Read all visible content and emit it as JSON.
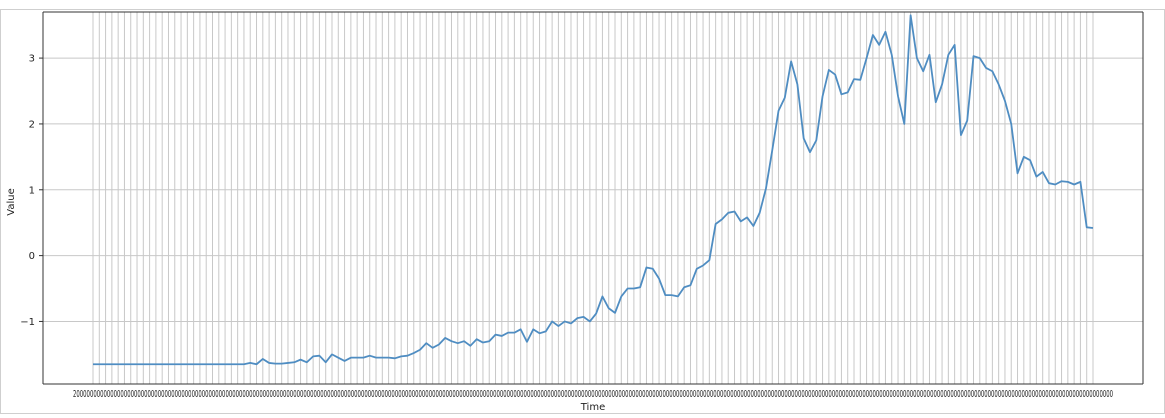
{
  "chart_data": {
    "type": "line",
    "xlabel": "Time",
    "ylabel": "Value",
    "ylim": [
      -1.95,
      3.7
    ],
    "yticks": [
      -1,
      0,
      1,
      2,
      3
    ],
    "ytick_labels": [
      "−1",
      "0",
      "1",
      "2",
      "3"
    ],
    "grid": true,
    "legend": "none",
    "x_tick_text": "2000000000000000000000000000000000000000000000000000000000000000000000000000000000000000000000000000000000000000000000000000000000000000000000000000000000000000000000000000000000000000000000000000000000000000000000000000000000000000000000000000000000000000000000000000000000000000000000000000000000000000000",
    "line_color": "#4f8dc2",
    "series": [
      {
        "values": [
          -1.65,
          -1.65,
          -1.65,
          -1.65,
          -1.65,
          -1.65,
          -1.65,
          -1.65,
          -1.65,
          -1.65,
          -1.65,
          -1.65,
          -1.65,
          -1.65,
          -1.65,
          -1.65,
          -1.65,
          -1.65,
          -1.65,
          -1.65,
          -1.65,
          -1.65,
          -1.65,
          -1.65,
          -1.65,
          -1.63,
          -1.65,
          -1.57,
          -1.63,
          -1.64,
          -1.64,
          -1.63,
          -1.62,
          -1.58,
          -1.62,
          -1.53,
          -1.52,
          -1.62,
          -1.5,
          -1.55,
          -1.6,
          -1.55,
          -1.55,
          -1.55,
          -1.52,
          -1.55,
          -1.55,
          -1.55,
          -1.56,
          -1.53,
          -1.52,
          -1.48,
          -1.43,
          -1.33,
          -1.4,
          -1.35,
          -1.25,
          -1.3,
          -1.33,
          -1.3,
          -1.37,
          -1.27,
          -1.32,
          -1.3,
          -1.2,
          -1.22,
          -1.17,
          -1.17,
          -1.12,
          -1.31,
          -1.12,
          -1.18,
          -1.15,
          -1.0,
          -1.07,
          -1.0,
          -1.03,
          -0.95,
          -0.93,
          -1.0,
          -0.88,
          -0.62,
          -0.8,
          -0.87,
          -0.62,
          -0.5,
          -0.5,
          -0.48,
          -0.18,
          -0.2,
          -0.35,
          -0.6,
          -0.6,
          -0.62,
          -0.48,
          -0.45,
          -0.2,
          -0.15,
          -0.07,
          0.48,
          0.55,
          0.65,
          0.67,
          0.52,
          0.58,
          0.45,
          0.65,
          1.02,
          1.6,
          2.2,
          2.4,
          2.95,
          2.6,
          1.78,
          1.57,
          1.75,
          2.42,
          2.82,
          2.75,
          2.45,
          2.48,
          2.68,
          2.67,
          3.0,
          3.35,
          3.2,
          3.4,
          3.05,
          2.42,
          2.0,
          3.65,
          3.0,
          2.8,
          3.05,
          2.33,
          2.6,
          3.05,
          3.2,
          1.83,
          2.05,
          3.03,
          3.0,
          2.85,
          2.8,
          2.6,
          2.35,
          2.0,
          1.25,
          1.5,
          1.45,
          1.2,
          1.27,
          1.1,
          1.08,
          1.13,
          1.12,
          1.08,
          1.12,
          0.43,
          0.42
        ]
      }
    ]
  }
}
